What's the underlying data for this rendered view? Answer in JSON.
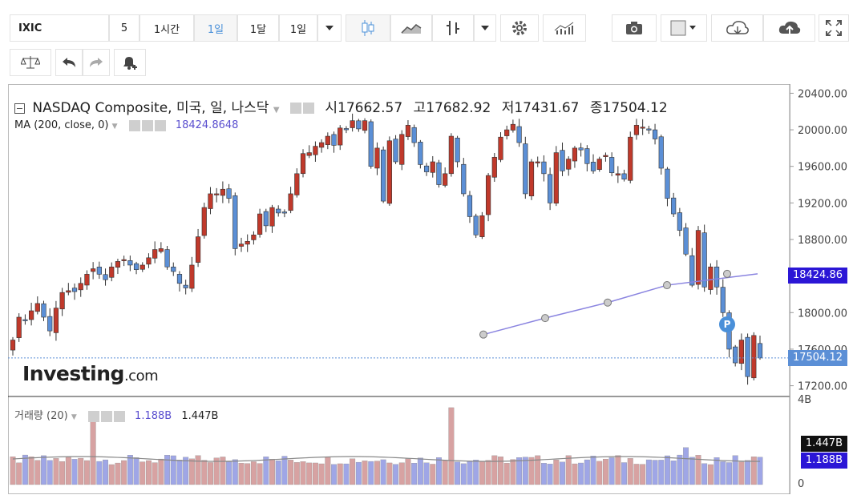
{
  "toolbar": {
    "symbol": "IXIC",
    "intervals": [
      "5",
      "1시간",
      "1일",
      "1달"
    ],
    "active_interval": "1일",
    "range_label": "1일"
  },
  "legend": {
    "title": "NASDAQ Composite, 미국, 일, 나스닥",
    "open_label": "시",
    "open": "17662.57",
    "high_label": "고",
    "high": "17682.92",
    "low_label": "저",
    "low": "17431.67",
    "close_label": "종",
    "close": "17504.12",
    "ma_label": "MA (200, close, 0)",
    "ma_value": "18424.8648",
    "volume_label": "거래량 (20)",
    "volume_value_1": "1.188B",
    "volume_value_2": "1.447B"
  },
  "price_tags": {
    "ma": "18424.86",
    "close": "17504.12",
    "vol_1": "1.447B",
    "vol_2": "1.188B"
  },
  "volume_axis": {
    "top": "4B",
    "zero": "0"
  },
  "brand": {
    "logo_text": "Investing",
    "logo_suffix": ".com"
  },
  "marker": {
    "label": "P"
  },
  "colors": {
    "up": "#c0392b",
    "down": "#5b8fd6",
    "ma": "#8a84e0",
    "vol_up": "#d7a2a2",
    "vol_down": "#9fa6e6"
  },
  "chart_data": {
    "type": "candlestick",
    "title": "NASDAQ Composite, 미국, 일, 나스닥",
    "y_ticks": [
      17200,
      17600,
      18000,
      18400,
      18800,
      19200,
      19600,
      20000,
      20400
    ],
    "ylim": [
      17100,
      20500
    ],
    "series": [
      {
        "name": "MA (200, close, 0)",
        "type": "line",
        "values": [
          17760,
          17940,
          18110,
          18300,
          18424
        ]
      }
    ],
    "last_close": 17504.12,
    "ohlc_close": [
      17700,
      17950,
      17920,
      18020,
      18100,
      17950,
      17800,
      18050,
      18220,
      18240,
      18230,
      18320,
      18420,
      18480,
      18420,
      18360,
      18500,
      18560,
      18580,
      18520,
      18470,
      18520,
      18600,
      18690,
      18700,
      18500,
      18450,
      18320,
      18270,
      18520,
      18830,
      19150,
      19300,
      19300,
      19350,
      19250,
      18700,
      18750,
      18780,
      18850,
      19080,
      18950,
      19150,
      19090,
      19100,
      19300,
      19520,
      19740,
      19750,
      19820,
      19860,
      19930,
      19830,
      20020,
      20000,
      20100,
      20010,
      20100,
      19600,
      19800,
      19220,
      19880,
      19650,
      19950,
      20050,
      19860,
      19620,
      19540,
      19650,
      19400,
      19520,
      19930,
      19650,
      19300,
      19050,
      18850,
      19060,
      19500,
      19700,
      19920,
      20000,
      20060,
      19860,
      19300,
      19650,
      19650,
      19520,
      19200,
      19750,
      19550,
      19680,
      19800,
      19780,
      19630,
      19550,
      19680,
      19720,
      19530,
      19520,
      19460,
      19920,
      20050,
      20030,
      20000,
      19900,
      19580,
      19250,
      19080,
      18900,
      18640,
      18300,
      18900,
      18280,
      18500,
      18280,
      18000,
      17600,
      17450,
      17700,
      17300,
      17750,
      17504
    ]
  }
}
